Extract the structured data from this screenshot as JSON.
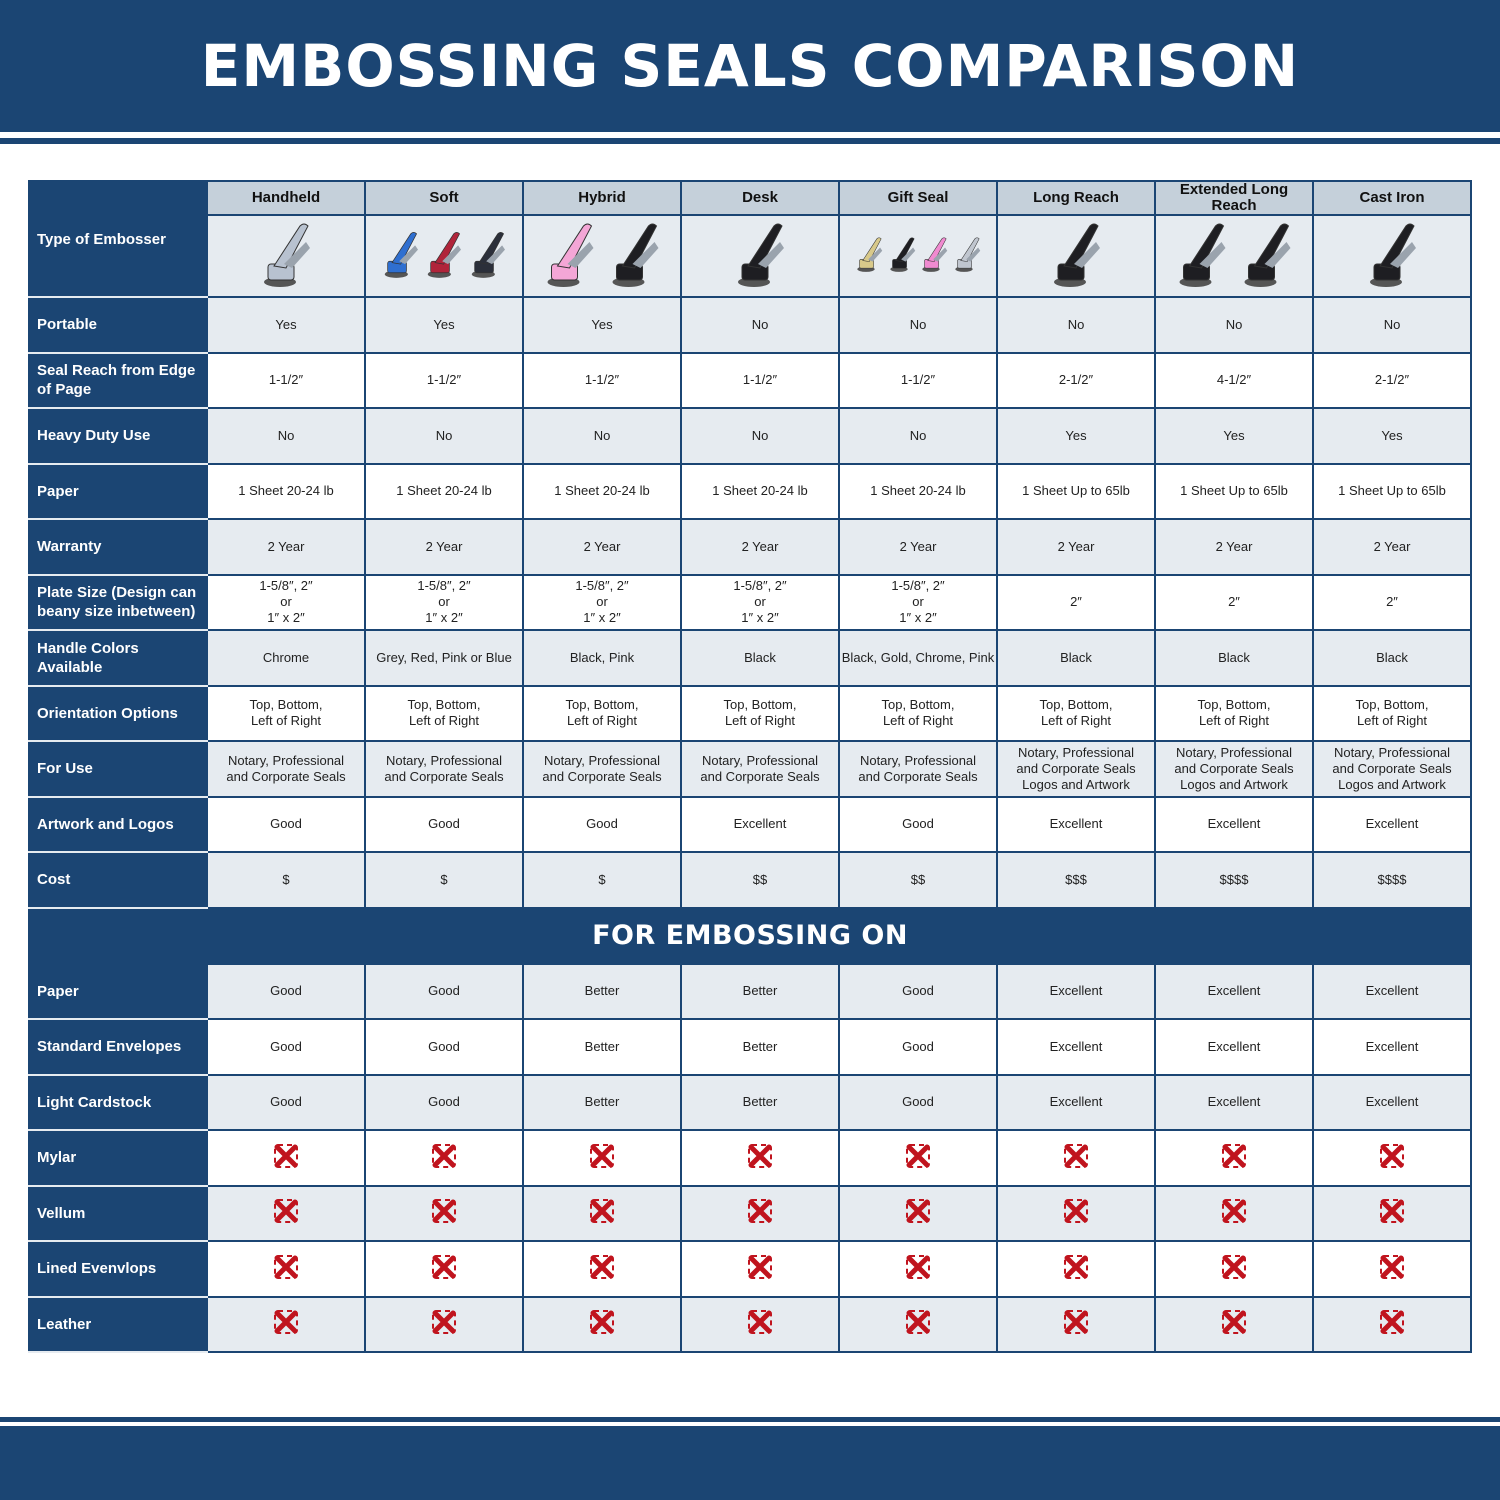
{
  "title": "EMBOSSING SEALS COMPARISON",
  "header_label": "Type of Embosser",
  "columns": [
    {
      "name": "Handheld",
      "image_colors": [
        "#b8c2d0"
      ]
    },
    {
      "name": "Soft",
      "image_colors": [
        "#2f6fd0",
        "#b0243a",
        "#2b2f3a"
      ]
    },
    {
      "name": "Hybrid",
      "image_colors": [
        "#f4a6d6",
        "#1e1e22"
      ]
    },
    {
      "name": "Desk",
      "image_colors": [
        "#1e1e22"
      ]
    },
    {
      "name": "Gift Seal",
      "image_colors": [
        "#d8c98a",
        "#1e1e22",
        "#f08ad0",
        "#c0c6cf"
      ]
    },
    {
      "name": "Long Reach",
      "image_colors": [
        "#1e1e22"
      ]
    },
    {
      "name": "Extended Long Reach",
      "image_colors": [
        "#1e1e22",
        "#1e1e22"
      ]
    },
    {
      "name": "Cast Iron",
      "image_colors": [
        "#1e1e22"
      ]
    }
  ],
  "rows": [
    {
      "label": "Portable",
      "values": [
        "Yes",
        "Yes",
        "Yes",
        "No",
        "No",
        "No",
        "No",
        "No"
      ]
    },
    {
      "label": "Seal Reach from Edge of Page",
      "values": [
        "1-1/2″",
        "1-1/2″",
        "1-1/2″",
        "1-1/2″",
        "1-1/2″",
        "2-1/2″",
        "4-1/2″",
        "2-1/2″"
      ]
    },
    {
      "label": "Heavy Duty Use",
      "values": [
        "No",
        "No",
        "No",
        "No",
        "No",
        "Yes",
        "Yes",
        "Yes"
      ]
    },
    {
      "label": "Paper",
      "values": [
        "1 Sheet 20-24 lb",
        "1 Sheet 20-24 lb",
        "1 Sheet 20-24 lb",
        "1 Sheet 20-24 lb",
        "1 Sheet 20-24 lb",
        "1 Sheet Up to 65lb",
        "1 Sheet Up to 65lb",
        "1 Sheet Up to 65lb"
      ]
    },
    {
      "label": "Warranty",
      "values": [
        "2 Year",
        "2 Year",
        "2 Year",
        "2 Year",
        "2 Year",
        "2 Year",
        "2 Year",
        "2 Year"
      ]
    },
    {
      "label": "Plate Size (Design can beany size inbetween)",
      "values": [
        "1-5/8″, 2″\nor\n1″ x 2″",
        "1-5/8″, 2″\nor\n1″ x 2″",
        "1-5/8″, 2″\nor\n1″ x 2″",
        "1-5/8″, 2″\nor\n1″ x 2″",
        "1-5/8″, 2″\nor\n1″ x 2″",
        "2″",
        "2″",
        "2″"
      ]
    },
    {
      "label": "Handle Colors Available",
      "values": [
        "Chrome",
        "Grey, Red, Pink or Blue",
        "Black, Pink",
        "Black",
        "Black, Gold, Chrome, Pink",
        "Black",
        "Black",
        "Black"
      ]
    },
    {
      "label": "Orientation Options",
      "values": [
        "Top, Bottom,\nLeft of Right",
        "Top, Bottom,\nLeft of Right",
        "Top, Bottom,\nLeft of Right",
        "Top, Bottom,\nLeft of Right",
        "Top, Bottom,\nLeft of Right",
        "Top, Bottom,\nLeft of Right",
        "Top, Bottom,\nLeft of Right",
        "Top, Bottom,\nLeft of Right"
      ]
    },
    {
      "label": "For Use",
      "values": [
        "Notary, Professional\nand Corporate Seals",
        "Notary, Professional\nand Corporate Seals",
        "Notary, Professional\nand Corporate Seals",
        "Notary, Professional\nand Corporate Seals",
        "Notary, Professional\nand Corporate Seals",
        "Notary, Professional\nand Corporate Seals\nLogos and Artwork",
        "Notary, Professional\nand Corporate Seals\nLogos and Artwork",
        "Notary, Professional\nand Corporate Seals\nLogos and Artwork"
      ]
    },
    {
      "label": "Artwork and Logos",
      "values": [
        "Good",
        "Good",
        "Good",
        "Excellent",
        "Good",
        "Excellent",
        "Excellent",
        "Excellent"
      ]
    },
    {
      "label": "Cost",
      "values": [
        "$",
        "$",
        "$",
        "$$",
        "$$",
        "$$$",
        "$$$$",
        "$$$$"
      ]
    }
  ],
  "section_title": "FOR EMBOSSING ON",
  "embossing_rows": [
    {
      "label": "Paper",
      "values": [
        "Good",
        "Good",
        "Better",
        "Better",
        "Good",
        "Excellent",
        "Excellent",
        "Excellent"
      ]
    },
    {
      "label": "Standard Envelopes",
      "values": [
        "Good",
        "Good",
        "Better",
        "Better",
        "Good",
        "Excellent",
        "Excellent",
        "Excellent"
      ]
    },
    {
      "label": "Light Cardstock",
      "values": [
        "Good",
        "Good",
        "Better",
        "Better",
        "Good",
        "Excellent",
        "Excellent",
        "Excellent"
      ]
    },
    {
      "label": "Mylar",
      "values": [
        "x-icon",
        "x-icon",
        "x-icon",
        "x-icon",
        "x-icon",
        "x-icon",
        "x-icon",
        "x-icon"
      ]
    },
    {
      "label": "Vellum",
      "values": [
        "x-icon",
        "x-icon",
        "x-icon",
        "x-icon",
        "x-icon",
        "x-icon",
        "x-icon",
        "x-icon"
      ]
    },
    {
      "label": "Lined Evenvlops",
      "values": [
        "x-icon",
        "x-icon",
        "x-icon",
        "x-icon",
        "x-icon",
        "x-icon",
        "x-icon",
        "x-icon"
      ]
    },
    {
      "label": "Leather",
      "values": [
        "x-icon",
        "x-icon",
        "x-icon",
        "x-icon",
        "x-icon",
        "x-icon",
        "x-icon",
        "x-icon"
      ]
    }
  ],
  "colors": {
    "navy": "#1b4573",
    "row_alt": "#e6ebf0",
    "header": "#c5d0da",
    "x_red": "#c0141e"
  }
}
